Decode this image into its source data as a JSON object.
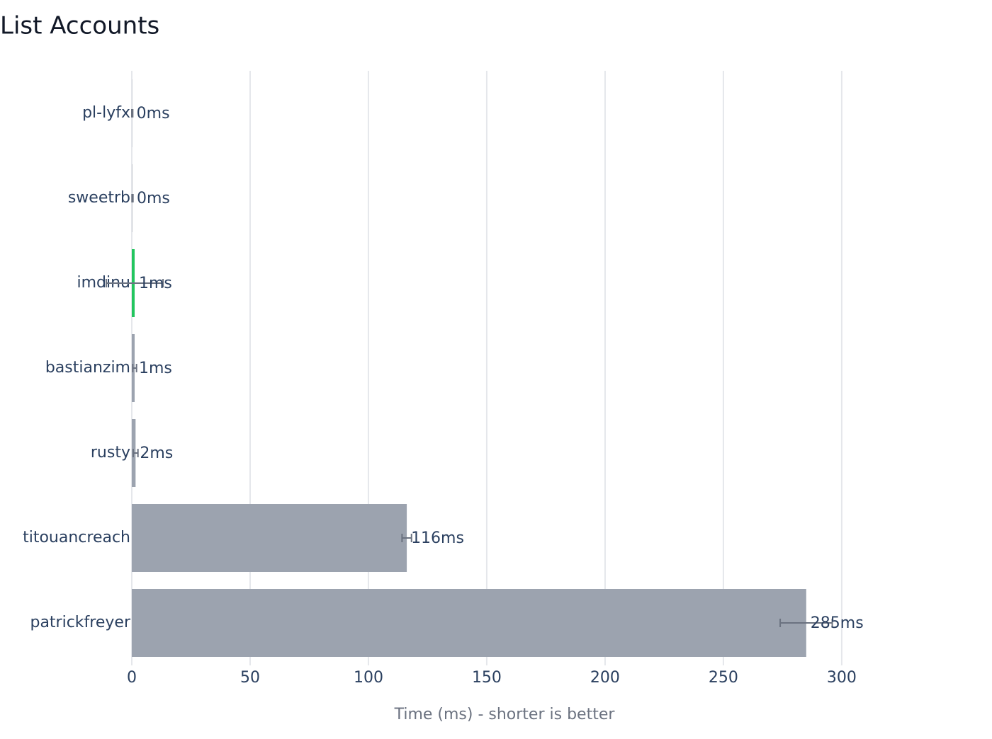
{
  "chart_data": {
    "type": "hbar",
    "title": "List Accounts",
    "x_label": "Time (ms) - shorter is better",
    "categories": [
      "pl-lyfx",
      "sweetrb",
      "imdinu",
      "bastianzim",
      "rusty",
      "titouancreach",
      "patrickfreyer"
    ],
    "values": [
      0.2,
      0.3,
      1.2,
      1.2,
      1.6,
      116.2,
      285
    ],
    "errors": [
      0.2,
      0.2,
      12,
      0.8,
      1,
      2,
      11
    ],
    "value_labels": [
      "0ms",
      "0ms",
      "1ms",
      "1ms",
      "2ms",
      "116ms",
      "285ms"
    ],
    "colors": [
      "#d1d5db",
      "#c4c8ce",
      "#22c55e",
      "#9ca3af",
      "#9ca3af",
      "#9ca3af",
      "#9ca3af"
    ],
    "error_color": "#6b7280",
    "xlim": [
      0,
      315
    ],
    "xticks": [
      0,
      50,
      100,
      150,
      200,
      250,
      300
    ],
    "grid": true
  }
}
